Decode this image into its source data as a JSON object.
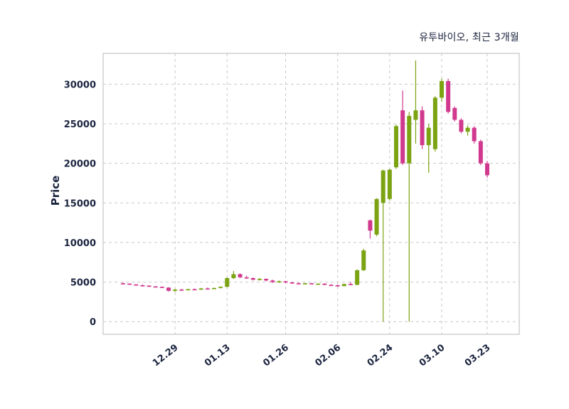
{
  "chart_data": {
    "type": "candlestick",
    "title": "유투바이오, 최근 3개월",
    "ylabel": "Price",
    "xlabel": "",
    "grid": "dashed",
    "legend": "none",
    "ylim": [
      -1600,
      33900
    ],
    "yticks": [
      0,
      5000,
      10000,
      15000,
      20000,
      25000,
      30000
    ],
    "xticks": [
      {
        "index": 8,
        "label": "12.29"
      },
      {
        "index": 16,
        "label": "01.13"
      },
      {
        "index": 25,
        "label": "01.26"
      },
      {
        "index": 33,
        "label": "02.06"
      },
      {
        "index": 41,
        "label": "02.24"
      },
      {
        "index": 49,
        "label": "03.10"
      },
      {
        "index": 56,
        "label": "03.23"
      }
    ],
    "ohlc_format": [
      "open",
      "high",
      "low",
      "close"
    ],
    "candles": [
      [
        4850,
        4950,
        4700,
        4800
      ],
      [
        4800,
        4850,
        4650,
        4700
      ],
      [
        4700,
        4750,
        4550,
        4600
      ],
      [
        4600,
        4700,
        4500,
        4550
      ],
      [
        4550,
        4600,
        4400,
        4450
      ],
      [
        4450,
        4500,
        4350,
        4400
      ],
      [
        4400,
        4450,
        4250,
        4300
      ],
      [
        4300,
        4350,
        3800,
        3900
      ],
      [
        3900,
        4150,
        3750,
        4050
      ],
      [
        4050,
        4150,
        3950,
        4000
      ],
      [
        4000,
        4150,
        3950,
        4100
      ],
      [
        4100,
        4200,
        4000,
        4050
      ],
      [
        4050,
        4250,
        4000,
        4200
      ],
      [
        4200,
        4300,
        4100,
        4150
      ],
      [
        4150,
        4300,
        4100,
        4250
      ],
      [
        4250,
        4450,
        4200,
        4400
      ],
      [
        4400,
        5600,
        4350,
        5500
      ],
      [
        5500,
        6400,
        5400,
        6000
      ],
      [
        6000,
        6100,
        5500,
        5600
      ],
      [
        5600,
        5800,
        5400,
        5500
      ],
      [
        5500,
        5600,
        5200,
        5300
      ],
      [
        5300,
        5500,
        5200,
        5400
      ],
      [
        5400,
        5450,
        5100,
        5200
      ],
      [
        5200,
        5300,
        4900,
        5000
      ],
      [
        5000,
        5200,
        4900,
        5100
      ],
      [
        5100,
        5150,
        4850,
        4950
      ],
      [
        4950,
        5050,
        4800,
        4850
      ],
      [
        4850,
        4950,
        4750,
        4800
      ],
      [
        4800,
        4900,
        4700,
        4850
      ],
      [
        4850,
        4900,
        4700,
        4750
      ],
      [
        4750,
        4850,
        4650,
        4800
      ],
      [
        4800,
        4850,
        4600,
        4650
      ],
      [
        4650,
        4750,
        4550,
        4600
      ],
      [
        4600,
        4700,
        4400,
        4500
      ],
      [
        4500,
        4800,
        4450,
        4750
      ],
      [
        4750,
        5000,
        4600,
        4650
      ],
      [
        4650,
        6600,
        4600,
        6500
      ],
      [
        6500,
        9200,
        6400,
        9000
      ],
      [
        12800,
        12900,
        10500,
        11500
      ],
      [
        11000,
        15600,
        10800,
        15500
      ],
      [
        15000,
        19200,
        0,
        19100
      ],
      [
        15500,
        19300,
        15300,
        19200
      ],
      [
        19500,
        24900,
        19300,
        24700
      ],
      [
        26700,
        29200,
        19800,
        20000
      ],
      [
        20000,
        26500,
        0,
        26000
      ],
      [
        25500,
        33000,
        22500,
        26700
      ],
      [
        26700,
        27200,
        21800,
        22300
      ],
      [
        22300,
        25000,
        18800,
        24500
      ],
      [
        21800,
        28500,
        21500,
        28300
      ],
      [
        28300,
        30700,
        27800,
        30400
      ],
      [
        30400,
        30700,
        26300,
        26500
      ],
      [
        27000,
        27200,
        25300,
        25500
      ],
      [
        25500,
        25700,
        23800,
        24000
      ],
      [
        24000,
        24800,
        23500,
        24500
      ],
      [
        24500,
        24700,
        22500,
        22800
      ],
      [
        22800,
        23000,
        19800,
        20000
      ],
      [
        20000,
        20300,
        18200,
        18500
      ]
    ],
    "colors": {
      "up": "#7ba312",
      "down": "#d1398e",
      "grid": "#c9c9c9",
      "axis_border": "#b8b8b8",
      "text": "#1c2540",
      "background": "#ffffff"
    }
  }
}
